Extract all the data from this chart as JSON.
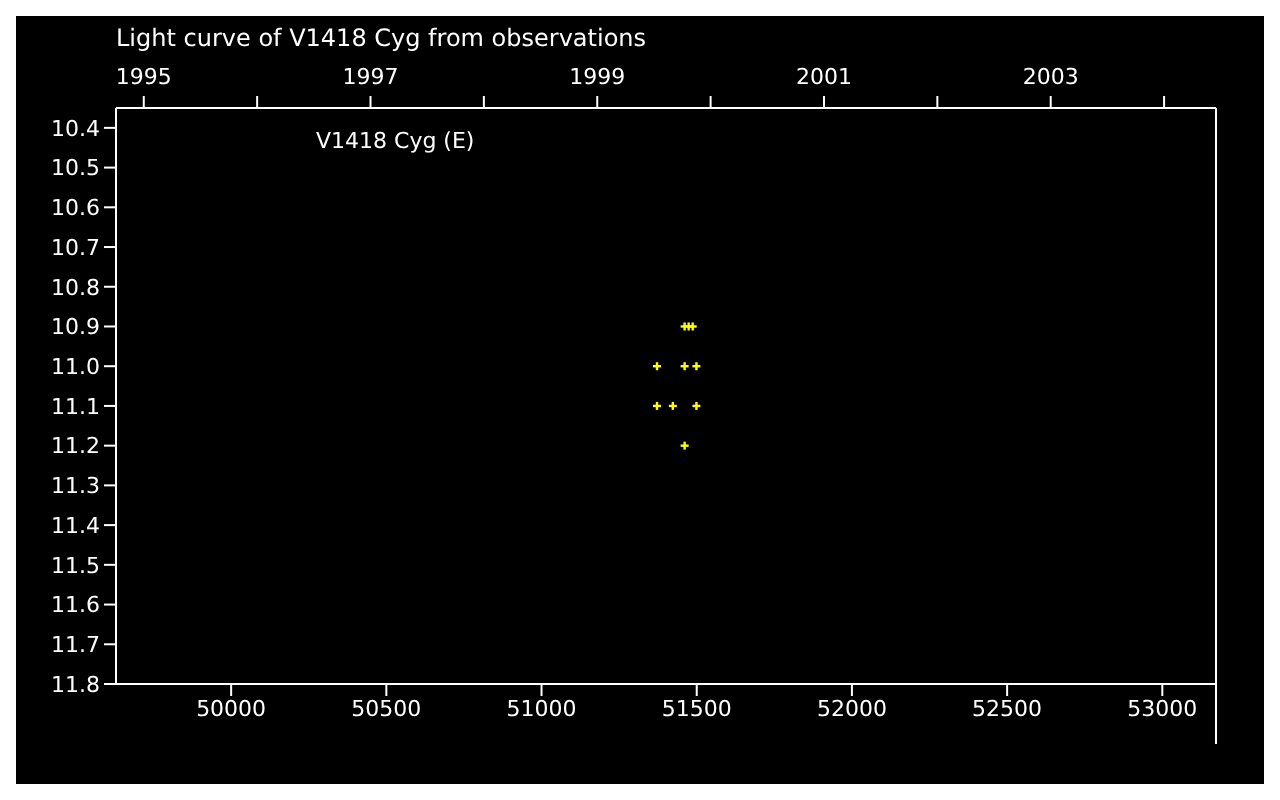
{
  "chart_data": {
    "type": "scatter",
    "title": "Light curve of V1418 Cyg from observations",
    "annotations": [
      "V1418 Cyg (E)"
    ],
    "series": [
      {
        "color": "#ffff00",
        "x": [
          51461,
          51474,
          51487,
          51372,
          51461,
          51499,
          51372,
          51423,
          51499,
          51461
        ],
        "values": [
          10.9,
          10.9,
          10.9,
          11.0,
          11.0,
          11.0,
          11.1,
          11.1,
          11.1,
          11.2
        ]
      }
    ],
    "marker": "cross",
    "xlim": [
      49629,
      53173
    ],
    "xticks": [
      50000,
      50500,
      51000,
      51500,
      52000,
      52500,
      53000
    ],
    "x2lim": [
      1994.755,
      2004.458
    ],
    "x2ticks": [
      1995,
      {
        "value": 1996,
        "label": null
      },
      1997,
      {
        "value": 1998,
        "label": null
      },
      1999,
      {
        "value": 2000,
        "label": null
      },
      2001,
      {
        "value": 2002,
        "label": null
      },
      2003,
      {
        "value": 2004,
        "label": null
      }
    ],
    "ylim": [
      11.8,
      10.35
    ],
    "yticks": [
      10.4,
      10.5,
      10.6,
      10.7,
      10.8,
      10.9,
      {
        "value": 11,
        "label": "11.0"
      },
      11.1,
      11.2,
      11.3,
      11.4,
      11.5,
      11.6,
      11.7,
      11.8
    ]
  }
}
